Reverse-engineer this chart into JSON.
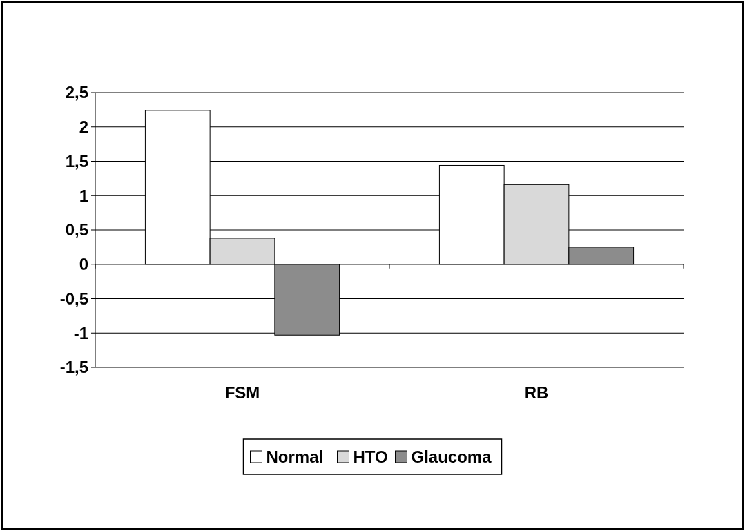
{
  "chart_data": {
    "type": "bar",
    "categories": [
      "FSM",
      "RB"
    ],
    "series": [
      {
        "name": "Normal",
        "color": "#ffffff",
        "values": [
          2.24,
          1.44
        ]
      },
      {
        "name": "HTO",
        "color": "#d9d9d9",
        "values": [
          0.38,
          1.16
        ]
      },
      {
        "name": "Glaucoma",
        "color": "#8c8c8c",
        "values": [
          -1.03,
          0.25
        ]
      }
    ],
    "ylim": [
      -1.5,
      2.5
    ],
    "yticks": [
      {
        "value": -1.5,
        "label": "-1,5"
      },
      {
        "value": -1,
        "label": "-1"
      },
      {
        "value": -0.5,
        "label": "-0,5"
      },
      {
        "value": 0,
        "label": "0"
      },
      {
        "value": 0.5,
        "label": "0,5"
      },
      {
        "value": 1,
        "label": "1"
      },
      {
        "value": 1.5,
        "label": "1,5"
      },
      {
        "value": 2,
        "label": "2"
      },
      {
        "value": 2.5,
        "label": "2,5"
      }
    ],
    "grid": "y",
    "legend": "bottom"
  }
}
